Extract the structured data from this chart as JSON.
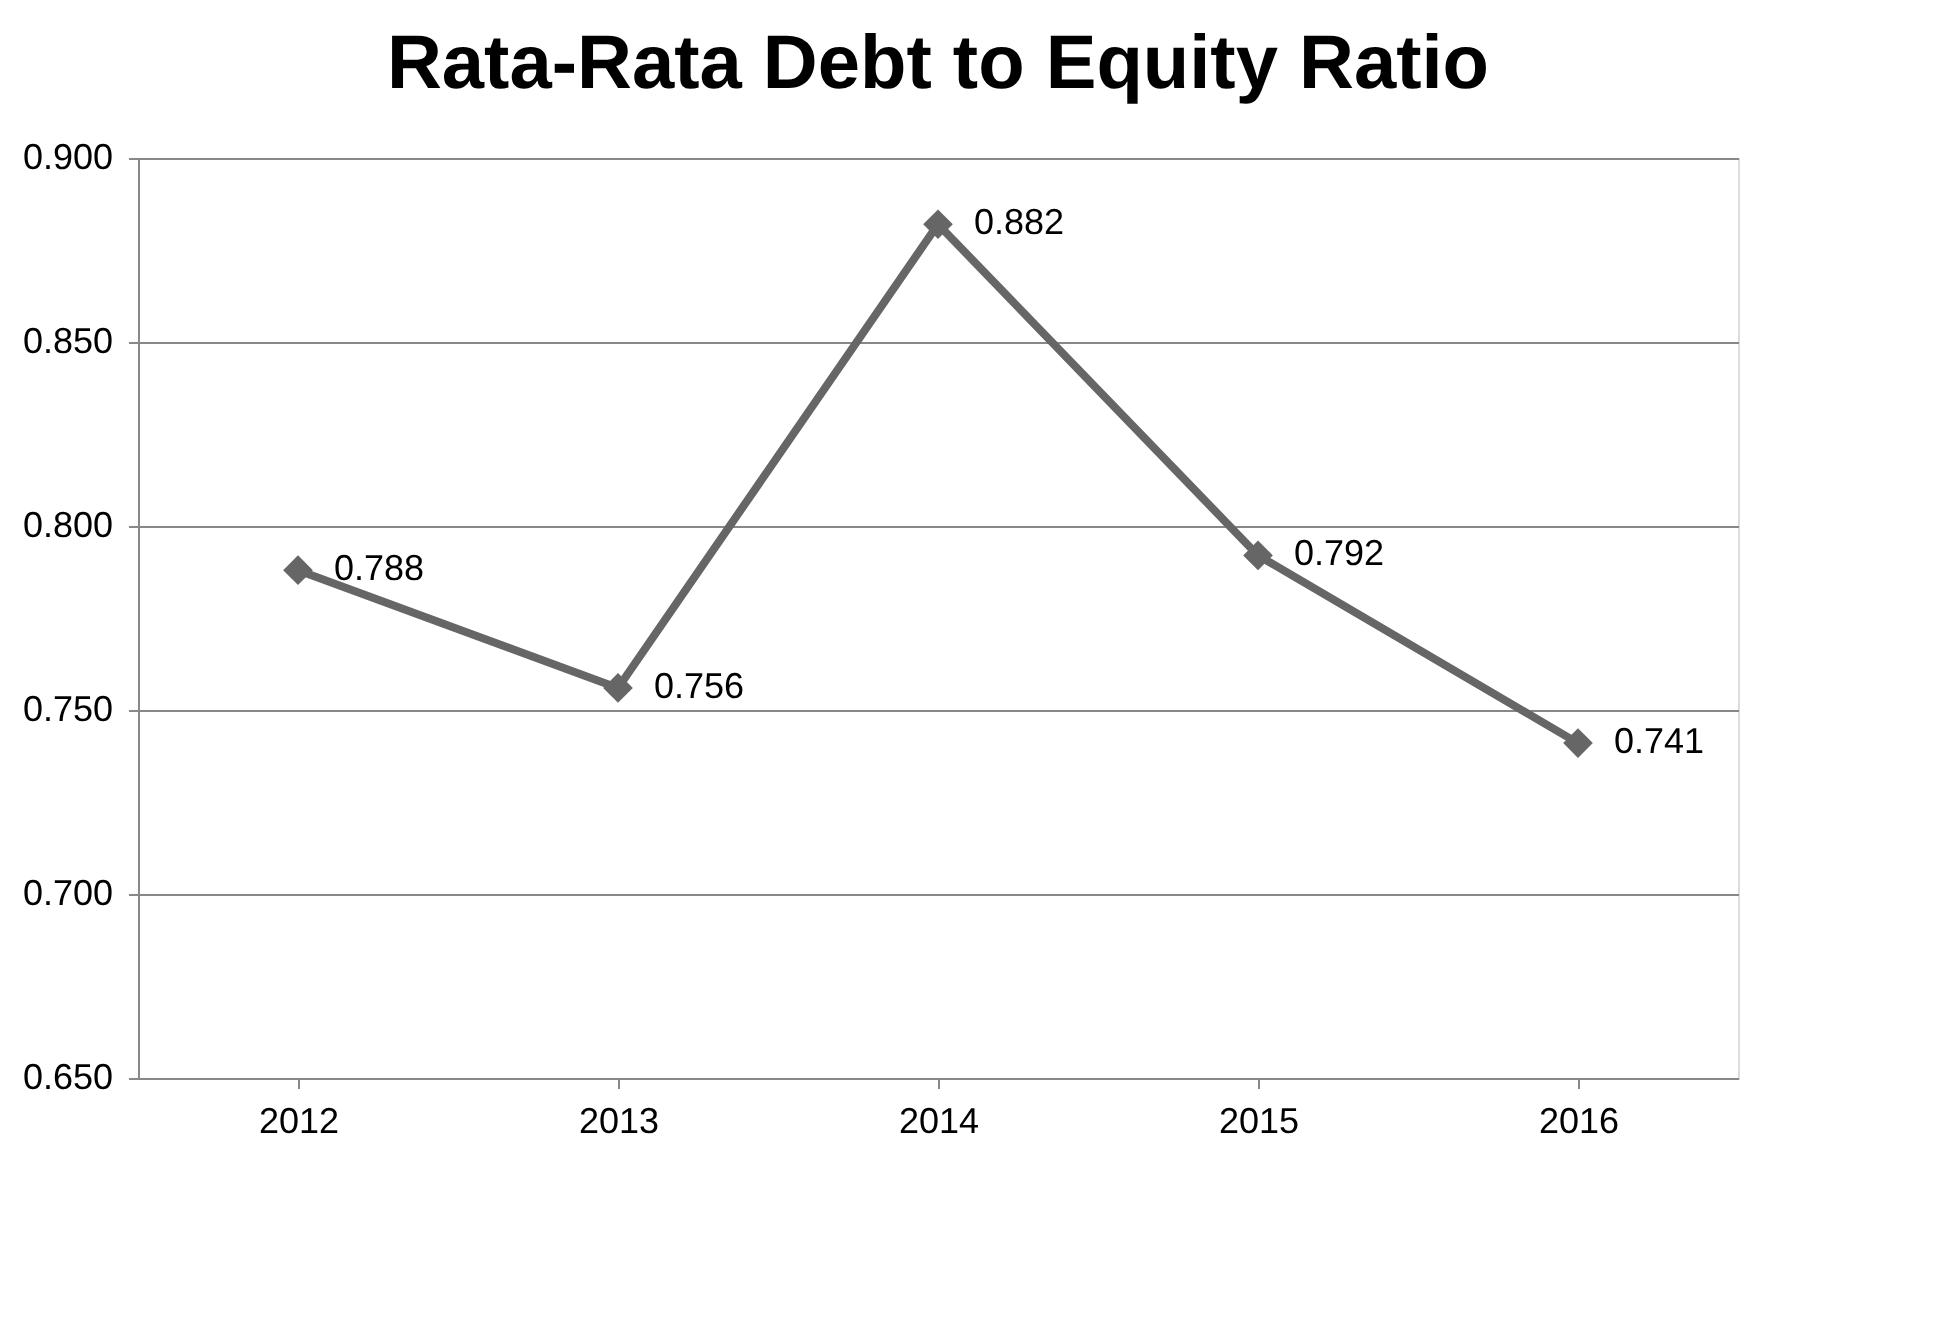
{
  "chart_data": {
    "type": "line",
    "title": "Rata-Rata Debt to Equity Ratio",
    "categories": [
      "2012",
      "2013",
      "2014",
      "2015",
      "2016"
    ],
    "series": [
      {
        "color": "#666666",
        "values": [
          0.788,
          0.756,
          0.882,
          0.792,
          0.741
        ]
      }
    ],
    "ylim": [
      0.65,
      0.9
    ],
    "yticks": [
      {
        "value": 0.65,
        "label": "0.650"
      },
      {
        "value": 0.7,
        "label": "0.700"
      },
      {
        "value": 0.75,
        "label": "0.750"
      },
      {
        "value": 0.8,
        "label": "0.800"
      },
      {
        "value": 0.85,
        "label": "0.850"
      },
      {
        "value": 0.9,
        "label": "0.900"
      }
    ],
    "grid": "y",
    "marker": "diamond",
    "line_style": "solid",
    "data_labels": true
  }
}
